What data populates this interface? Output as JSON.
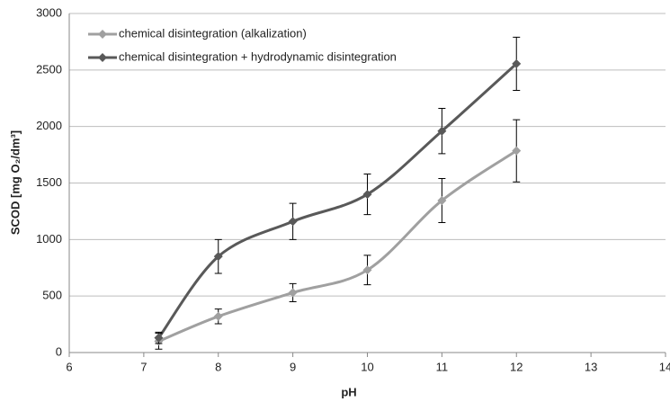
{
  "chart_data": {
    "type": "line",
    "x_label": "pH",
    "y_label": "SCOD [mg O₂/dm³]",
    "x": [
      7.2,
      8,
      9,
      10,
      11,
      12
    ],
    "series": [
      {
        "name": "chemical disintegration (alkalization)",
        "color": "#a0a0a0",
        "values": [
          100,
          320,
          530,
          730,
          1345,
          1785
        ],
        "errors": [
          70,
          65,
          80,
          130,
          195,
          275
        ]
      },
      {
        "name": "chemical disintegration + hydrodynamic disintegration",
        "color": "#595959",
        "values": [
          130,
          850,
          1160,
          1400,
          1960,
          2555
        ],
        "errors": [
          50,
          150,
          160,
          180,
          200,
          235
        ]
      }
    ],
    "xlim": [
      6,
      14
    ],
    "xticks": [
      6,
      7,
      8,
      9,
      10,
      11,
      12,
      13,
      14
    ],
    "ylim": [
      0,
      3000
    ],
    "yticks": [
      0,
      500,
      1000,
      1500,
      2000,
      2500,
      3000
    ],
    "grid": true,
    "legend": "top-left"
  }
}
